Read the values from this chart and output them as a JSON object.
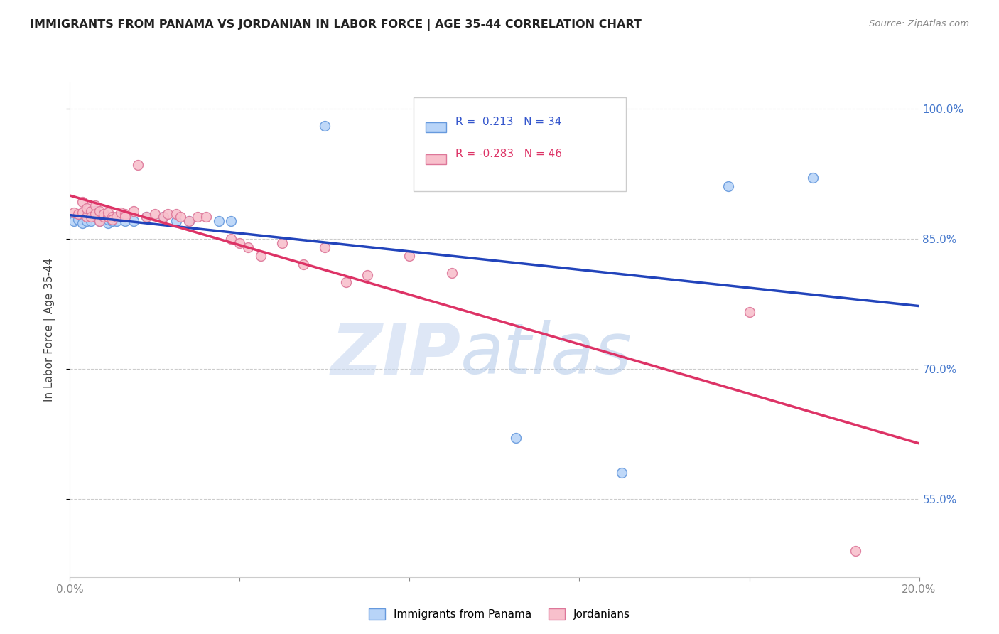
{
  "title": "IMMIGRANTS FROM PANAMA VS JORDANIAN IN LABOR FORCE | AGE 35-44 CORRELATION CHART",
  "source": "Source: ZipAtlas.com",
  "ylabel": "In Labor Force | Age 35-44",
  "xlim": [
    0.0,
    0.2
  ],
  "ylim": [
    0.46,
    1.03
  ],
  "xticks": [
    0.0,
    0.04,
    0.08,
    0.12,
    0.16,
    0.2
  ],
  "xtick_labels": [
    "0.0%",
    "",
    "",
    "",
    "",
    "20.0%"
  ],
  "yticks": [
    0.55,
    0.7,
    0.85,
    1.0
  ],
  "ytick_labels": [
    "55.0%",
    "70.0%",
    "85.0%",
    "100.0%"
  ],
  "r_panama": 0.213,
  "n_panama": 34,
  "r_jordan": -0.283,
  "n_jordan": 46,
  "panama_color": "#b8d4f8",
  "panama_edge": "#6699dd",
  "jordan_color": "#f8c0cc",
  "jordan_edge": "#dd7799",
  "line_panama_color": "#2244bb",
  "line_jordan_color": "#dd3366",
  "watermark_zip": "ZIP",
  "watermark_atlas": "atlas",
  "panama_x": [
    0.001,
    0.002,
    0.003,
    0.003,
    0.004,
    0.004,
    0.005,
    0.005,
    0.005,
    0.006,
    0.006,
    0.007,
    0.007,
    0.008,
    0.008,
    0.009,
    0.009,
    0.01,
    0.01,
    0.011,
    0.012,
    0.013,
    0.015,
    0.018,
    0.022,
    0.025,
    0.028,
    0.035,
    0.038,
    0.06,
    0.105,
    0.13,
    0.155,
    0.175
  ],
  "panama_y": [
    0.87,
    0.872,
    0.875,
    0.868,
    0.875,
    0.87,
    0.88,
    0.875,
    0.87,
    0.882,
    0.876,
    0.875,
    0.87,
    0.875,
    0.878,
    0.868,
    0.872,
    0.87,
    0.875,
    0.87,
    0.875,
    0.87,
    0.87,
    0.875,
    0.875,
    0.87,
    0.87,
    0.87,
    0.87,
    0.98,
    0.62,
    0.58,
    0.91,
    0.92
  ],
  "jordan_x": [
    0.001,
    0.002,
    0.003,
    0.003,
    0.004,
    0.004,
    0.005,
    0.005,
    0.006,
    0.006,
    0.007,
    0.007,
    0.008,
    0.008,
    0.009,
    0.009,
    0.01,
    0.01,
    0.011,
    0.012,
    0.013,
    0.013,
    0.015,
    0.016,
    0.018,
    0.02,
    0.022,
    0.023,
    0.025,
    0.026,
    0.028,
    0.03,
    0.032,
    0.038,
    0.04,
    0.042,
    0.045,
    0.05,
    0.055,
    0.06,
    0.065,
    0.07,
    0.08,
    0.09,
    0.16,
    0.185
  ],
  "jordan_y": [
    0.88,
    0.878,
    0.892,
    0.88,
    0.875,
    0.885,
    0.882,
    0.875,
    0.888,
    0.878,
    0.882,
    0.87,
    0.875,
    0.878,
    0.875,
    0.88,
    0.875,
    0.872,
    0.875,
    0.88,
    0.878,
    0.875,
    0.882,
    0.935,
    0.875,
    0.878,
    0.875,
    0.878,
    0.878,
    0.875,
    0.87,
    0.875,
    0.875,
    0.85,
    0.845,
    0.84,
    0.83,
    0.845,
    0.82,
    0.84,
    0.8,
    0.808,
    0.83,
    0.81,
    0.765,
    0.49
  ]
}
